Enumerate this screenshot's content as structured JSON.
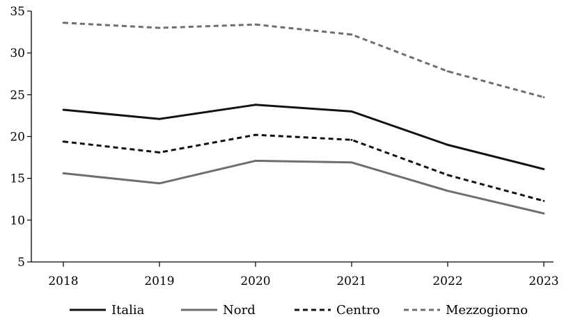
{
  "chart_data": {
    "type": "line",
    "title": "",
    "xlabel": "",
    "ylabel": "",
    "x": [
      "2018",
      "2019",
      "2020",
      "2021",
      "2022",
      "2023"
    ],
    "ylim": [
      5,
      35
    ],
    "yticks": [
      5,
      10,
      15,
      20,
      25,
      30,
      35
    ],
    "grid": false,
    "legend_position": "bottom",
    "series": [
      {
        "name": "Italia",
        "values": [
          23.2,
          22.1,
          23.8,
          23.0,
          19.0,
          16.1
        ],
        "color": "#111111",
        "style": "solid"
      },
      {
        "name": "Nord",
        "values": [
          15.6,
          14.4,
          17.1,
          16.9,
          13.5,
          10.8
        ],
        "color": "#6e6e6e",
        "style": "solid"
      },
      {
        "name": "Centro",
        "values": [
          19.4,
          18.1,
          20.2,
          19.6,
          15.4,
          12.3
        ],
        "color": "#111111",
        "style": "dashed"
      },
      {
        "name": "Mezzogiorno",
        "values": [
          33.6,
          33.0,
          33.4,
          32.2,
          27.8,
          24.7
        ],
        "color": "#6e6e6e",
        "style": "dashed"
      }
    ]
  }
}
